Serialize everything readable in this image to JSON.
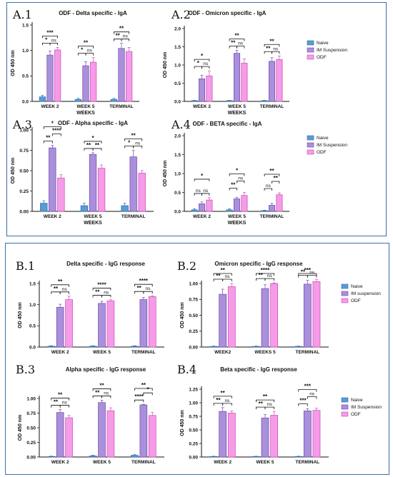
{
  "colors": {
    "Naive": "#5b9bd5",
    "IM Suspension": "#a98fdc",
    "ODF": "#f59be8",
    "barBorderNaive": "#2f6aa8",
    "barBorderIM": "#6f4aa6",
    "barBorderODF": "#c94bb3",
    "panelBorder": "#3a6fa7"
  },
  "chart_data": [
    {
      "id": "A1",
      "type": "bar",
      "panel_label": "A.1",
      "title": "ODF - Delta specific - IgA",
      "ylabel": "OD 450 nm",
      "xlabel": "WEEKS",
      "ylim": [
        0,
        1.5
      ],
      "yticks": [
        "0.0",
        "0.5",
        "1.0",
        "1.5"
      ],
      "yticks_v": [
        0,
        0.5,
        1.0,
        1.5
      ],
      "categories": [
        "WEEK 2",
        "WEEK 5",
        "TERMINAL"
      ],
      "series": [
        {
          "name": "Naive",
          "values": [
            0.09,
            0.04,
            0.04
          ]
        },
        {
          "name": "IM Suspension",
          "values": [
            0.91,
            0.7,
            1.04
          ]
        },
        {
          "name": "ODF",
          "values": [
            1.01,
            0.77,
            0.98
          ]
        }
      ],
      "errors": [
        [
          0.03,
          0.02,
          0.02
        ],
        [
          0.08,
          0.08,
          0.1
        ],
        [
          0.05,
          0.09,
          0.08
        ]
      ],
      "brackets": [
        [
          [
            "***",
            "n",
            "o",
            2
          ],
          [
            "*",
            "n",
            "i",
            1
          ],
          [
            "ns",
            "i",
            "o",
            1
          ]
        ],
        [
          [
            "**",
            "n",
            "o",
            2
          ],
          [
            "*",
            "n",
            "i",
            1
          ],
          [
            "ns",
            "i",
            "o",
            1
          ]
        ],
        [
          [
            "**",
            "n",
            "o",
            2
          ],
          [
            "**",
            "n",
            "i",
            1
          ],
          [
            "ns",
            "i",
            "o",
            1
          ]
        ]
      ]
    },
    {
      "id": "A2",
      "type": "bar",
      "panel_label": "A.2",
      "title": "ODF - Omicron specific - IgA",
      "ylabel": "OD 450 nm",
      "xlabel": "WEEKS",
      "ylim": [
        0,
        2.0
      ],
      "yticks": [
        "0.0",
        "0.5",
        "1.0",
        "1.5",
        "2.0"
      ],
      "yticks_v": [
        0,
        0.5,
        1.0,
        1.5,
        2.0
      ],
      "categories": [
        "WEEK 2",
        "WEEK 5",
        "TERMINAL"
      ],
      "series": [
        {
          "name": "Naive",
          "values": [
            0.02,
            0.02,
            0.02
          ]
        },
        {
          "name": "IM Suspension",
          "values": [
            0.62,
            1.32,
            1.1
          ]
        },
        {
          "name": "ODF",
          "values": [
            0.7,
            1.05,
            1.15
          ]
        }
      ],
      "errors": [
        [
          0.01,
          0.01,
          0.01
        ],
        [
          0.1,
          0.08,
          0.1
        ],
        [
          0.14,
          0.12,
          0.1
        ]
      ],
      "brackets": [
        [
          [
            "*",
            "n",
            "o",
            2
          ],
          [
            "*",
            "n",
            "i",
            1
          ],
          [
            "ns",
            "i",
            "o",
            1
          ]
        ],
        [
          [
            "**",
            "n",
            "o",
            2
          ],
          [
            "**",
            "n",
            "i",
            1
          ],
          [
            "ns",
            "i",
            "o",
            1
          ]
        ],
        [
          [
            "**",
            "n",
            "o",
            2
          ],
          [
            "**",
            "n",
            "i",
            1
          ],
          [
            "ns",
            "i",
            "o",
            1
          ]
        ]
      ],
      "legend": true
    },
    {
      "id": "A3",
      "type": "bar",
      "panel_label": "A.3",
      "title": "ODF - Alpha specific - IgA",
      "ylabel": "OD 450 nm",
      "xlabel": "WEEKS",
      "ylim": [
        0,
        1.0
      ],
      "yticks": [
        "0.00",
        "0.25",
        "0.50",
        "0.75",
        "1.00"
      ],
      "yticks_v": [
        0,
        0.25,
        0.5,
        0.75,
        1.0
      ],
      "categories": [
        "WEEK 2",
        "WEEK 5",
        "TERMINAL"
      ],
      "series": [
        {
          "name": "Naive",
          "values": [
            0.1,
            0.07,
            0.07
          ]
        },
        {
          "name": "IM Suspension",
          "values": [
            0.78,
            0.7,
            0.67
          ]
        },
        {
          "name": "ODF",
          "values": [
            0.41,
            0.53,
            0.47
          ]
        }
      ],
      "errors": [
        [
          0.03,
          0.03,
          0.03
        ],
        [
          0.03,
          0.02,
          0.08
        ],
        [
          0.04,
          0.04,
          0.03
        ]
      ],
      "brackets": [
        [
          [
            "*",
            "n",
            "o",
            3
          ],
          [
            "****",
            "i",
            "o",
            2
          ],
          [
            "**",
            "n",
            "i",
            1
          ]
        ],
        [
          [
            "*",
            "n",
            "o",
            2
          ],
          [
            "**",
            "n",
            "i",
            1
          ],
          [
            "**",
            "i",
            "o",
            1
          ]
        ],
        [
          [
            "**",
            "n",
            "o",
            2
          ],
          [
            "*",
            "n",
            "i",
            1
          ],
          [
            "ns",
            "i",
            "o",
            1
          ]
        ]
      ]
    },
    {
      "id": "A4",
      "type": "bar",
      "panel_label": "A.4",
      "title": "ODF - BETA specific - IgA",
      "ylabel": "OD 450 nm",
      "xlabel": "WEEKS",
      "ylim": [
        0,
        2.0
      ],
      "yticks": [
        "0.0",
        "0.5",
        "1.0",
        "1.5",
        "2.0"
      ],
      "yticks_v": [
        0,
        0.5,
        1.0,
        1.5,
        2.0
      ],
      "categories": [
        "WEEK 2",
        "WEEK 5",
        "TERMINAL"
      ],
      "series": [
        {
          "name": "Naive",
          "values": [
            0.04,
            0.04,
            0.02
          ]
        },
        {
          "name": "IM Suspension",
          "values": [
            0.2,
            0.33,
            0.16
          ]
        },
        {
          "name": "ODF",
          "values": [
            0.3,
            0.42,
            0.44
          ]
        }
      ],
      "errors": [
        [
          0.03,
          0.03,
          0.01
        ],
        [
          0.05,
          0.04,
          0.05
        ],
        [
          0.06,
          0.08,
          0.05
        ]
      ],
      "brackets": [
        [
          [
            "*",
            "n",
            "o",
            3
          ],
          [
            "ns",
            "n",
            "i",
            1
          ],
          [
            "ns",
            "i",
            "o",
            1
          ]
        ],
        [
          [
            "*",
            "n",
            "o",
            3
          ],
          [
            "ns",
            "i",
            "o",
            2
          ],
          [
            "**",
            "n",
            "i",
            1
          ]
        ],
        [
          [
            "**",
            "n",
            "o",
            3
          ],
          [
            "**",
            "i",
            "o",
            2
          ],
          [
            "ns",
            "n",
            "i",
            1
          ]
        ]
      ],
      "legend": true
    },
    {
      "id": "B1",
      "type": "bar",
      "panel_label": "B.1",
      "title": "Delta specific - IgG response",
      "ylabel": "OD 450 nm",
      "xlabel": "",
      "ylim": [
        0,
        1.5
      ],
      "yticks": [
        "0.0",
        "0.5",
        "1.0",
        "1.5"
      ],
      "yticks_v": [
        0,
        0.5,
        1.0,
        1.5
      ],
      "categories": [
        "WEEK 2",
        "WEEK 5",
        "TERMINAL"
      ],
      "series": [
        {
          "name": "Naive",
          "values": [
            0.02,
            0.02,
            0.02
          ]
        },
        {
          "name": "IM Suspension",
          "values": [
            0.94,
            1.03,
            1.12
          ]
        },
        {
          "name": "ODF",
          "values": [
            1.12,
            1.09,
            1.19
          ]
        }
      ],
      "errors": [
        [
          0.01,
          0.01,
          0.01
        ],
        [
          0.07,
          0.05,
          0.05
        ],
        [
          0.08,
          0.03,
          0.02
        ]
      ],
      "brackets": [
        [
          [
            "**",
            "n",
            "o",
            2
          ],
          [
            "**",
            "n",
            "i",
            1
          ],
          [
            "ns",
            "i",
            "o",
            1
          ]
        ],
        [
          [
            "****",
            "n",
            "o",
            2
          ],
          [
            "**",
            "n",
            "i",
            1
          ],
          [
            "ns",
            "i",
            "o",
            1
          ]
        ],
        [
          [
            "****",
            "n",
            "o",
            2
          ],
          [
            "**",
            "n",
            "i",
            1
          ],
          [
            "ns",
            "i",
            "o",
            1
          ]
        ]
      ]
    },
    {
      "id": "B2",
      "type": "bar",
      "panel_label": "B.2",
      "title": "Omicron specific - IgG  response",
      "ylabel": "OD 450 nm",
      "xlabel": "",
      "ylim": [
        0,
        1.0
      ],
      "yticks": [
        "0.00",
        "0.25",
        "0.50",
        "0.75",
        "1.00"
      ],
      "yticks_v": [
        0,
        0.25,
        0.5,
        0.75,
        1.0
      ],
      "categories": [
        "WEEK2",
        "WEEKS 5",
        "TERMINAL"
      ],
      "series": [
        {
          "name": "Naive",
          "values": [
            0.01,
            0.01,
            0.01
          ]
        },
        {
          "name": "IM suspension",
          "values": [
            0.83,
            0.92,
            0.99
          ]
        },
        {
          "name": "ODF",
          "values": [
            0.95,
            1.0,
            1.03
          ]
        }
      ],
      "errors": [
        [
          0.005,
          0.005,
          0.005
        ],
        [
          0.08,
          0.06,
          0.06
        ],
        [
          0.05,
          0.01,
          0.03
        ]
      ],
      "brackets": [
        [
          [
            "**",
            "n",
            "o",
            2
          ],
          [
            "**",
            "n",
            "i",
            1
          ],
          [
            "ns",
            "i",
            "o",
            1
          ]
        ],
        [
          [
            "****",
            "n",
            "o",
            2
          ],
          [
            "**",
            "n",
            "i",
            1
          ],
          [
            "ns",
            "i",
            "o",
            1
          ]
        ],
        [
          [
            "***",
            "n",
            "o",
            2
          ],
          [
            "**",
            "n",
            "i",
            1
          ],
          [
            "ns",
            "i",
            "o",
            1
          ]
        ]
      ],
      "legend": true
    },
    {
      "id": "B3",
      "type": "bar",
      "panel_label": "B.3",
      "title": "Alpha specific - IgG response",
      "ylabel": "OD 450 nm",
      "xlabel": "",
      "ylim": [
        0,
        1.0
      ],
      "yticks": [
        "0.00",
        "0.25",
        "0.50",
        "0.75",
        "1.00"
      ],
      "yticks_v": [
        0,
        0.25,
        0.5,
        0.75,
        1.0
      ],
      "categories": [
        "WEEK 2",
        "WEEK 5",
        "TERMINAL"
      ],
      "series": [
        {
          "name": "Naive",
          "values": [
            0.01,
            0.02,
            0.03
          ]
        },
        {
          "name": "IM Suspension",
          "values": [
            0.76,
            0.93,
            0.89
          ]
        },
        {
          "name": "ODF",
          "values": [
            0.67,
            0.79,
            0.71
          ]
        }
      ],
      "errors": [
        [
          0.005,
          0.01,
          0.01
        ],
        [
          0.05,
          0.04,
          0.01
        ],
        [
          0.04,
          0.05,
          0.05
        ]
      ],
      "brackets": [
        [
          [
            "**",
            "n",
            "o",
            2
          ],
          [
            "**",
            "n",
            "i",
            1
          ],
          [
            "ns",
            "i",
            "o",
            1
          ]
        ],
        [
          [
            "**",
            "n",
            "o",
            2
          ],
          [
            "**",
            "n",
            "i",
            1
          ],
          [
            "ns",
            "i",
            "o",
            1
          ]
        ],
        [
          [
            "**",
            "n",
            "o",
            3
          ],
          [
            "*",
            "i",
            "o",
            2
          ],
          [
            "****",
            "n",
            "i",
            1
          ]
        ]
      ]
    },
    {
      "id": "B4",
      "type": "bar",
      "panel_label": "B.4",
      "title": "Beta specific - IgG response",
      "ylabel": "OD 450 nm",
      "xlabel": "",
      "ylim": [
        0,
        1.25
      ],
      "yticks": [
        "0.00",
        "0.25",
        "0.50",
        "0.75",
        "1.00",
        "1.25"
      ],
      "yticks_v": [
        0,
        0.25,
        0.5,
        0.75,
        1.0,
        1.25
      ],
      "categories": [
        "WEEK 2",
        "WEEK 5",
        "TERMINAL"
      ],
      "series": [
        {
          "name": "Naive",
          "values": [
            0.01,
            0.01,
            0.01
          ]
        },
        {
          "name": "IM Suspension",
          "values": [
            0.84,
            0.72,
            0.85
          ]
        },
        {
          "name": "ODF",
          "values": [
            0.81,
            0.77,
            0.86
          ]
        }
      ],
      "errors": [
        [
          0.005,
          0.005,
          0.005
        ],
        [
          0.07,
          0.06,
          0.04
        ],
        [
          0.04,
          0.07,
          0.04
        ]
      ],
      "brackets": [
        [
          [
            "**",
            "n",
            "o",
            2
          ],
          [
            "**",
            "n",
            "i",
            1
          ],
          [
            "ns",
            "i",
            "o",
            1
          ]
        ],
        [
          [
            "**",
            "n",
            "o",
            2
          ],
          [
            "**",
            "n",
            "i",
            1
          ],
          [
            "ns",
            "i",
            "o",
            1
          ]
        ],
        [
          [
            "***",
            "n",
            "o",
            3
          ],
          [
            "ns",
            "i",
            "o",
            2
          ],
          [
            "***",
            "n",
            "i",
            1
          ]
        ]
      ],
      "legend": true
    }
  ]
}
